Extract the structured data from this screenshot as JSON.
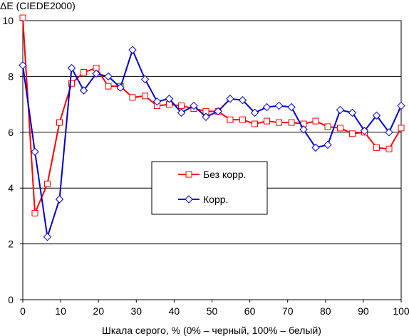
{
  "chart_data": {
    "type": "line",
    "title": "",
    "ylabel": "ΔE (CIEDE2000)",
    "xlabel": "Шкала серого, % (0% – черный, 100% – белый)",
    "xlim": [
      0,
      100
    ],
    "ylim": [
      0,
      10
    ],
    "xticks": [
      0,
      10,
      20,
      30,
      40,
      50,
      60,
      70,
      80,
      90,
      100
    ],
    "yticks": [
      0,
      2,
      4,
      6,
      8,
      10
    ],
    "grid": "horizontal",
    "legend_position": "center",
    "x": [
      0,
      3.2,
      6.5,
      9.7,
      12.9,
      16.1,
      19.4,
      22.6,
      25.8,
      29.0,
      32.3,
      35.5,
      38.7,
      41.9,
      45.2,
      48.4,
      51.6,
      54.8,
      58.1,
      61.3,
      64.5,
      67.7,
      71.0,
      74.2,
      77.4,
      80.6,
      83.9,
      87.1,
      90.3,
      93.5,
      96.8,
      100
    ],
    "series": [
      {
        "name": "Без корр.",
        "color": "#ff0000",
        "marker": "square",
        "values": [
          10.1,
          3.1,
          4.15,
          6.35,
          7.75,
          8.15,
          8.3,
          7.65,
          7.65,
          7.25,
          7.3,
          6.95,
          7.0,
          6.95,
          6.85,
          6.75,
          6.75,
          6.45,
          6.45,
          6.3,
          6.4,
          6.35,
          6.35,
          6.3,
          6.4,
          6.2,
          6.15,
          5.95,
          6.0,
          5.45,
          5.4,
          6.15
        ]
      },
      {
        "name": "Корр.",
        "color": "#0000cc",
        "marker": "diamond",
        "values": [
          8.4,
          5.3,
          2.25,
          3.6,
          8.3,
          7.5,
          8.1,
          8.0,
          7.6,
          8.95,
          7.9,
          7.1,
          7.2,
          6.7,
          6.95,
          6.55,
          6.75,
          7.2,
          7.15,
          6.7,
          6.9,
          6.95,
          6.9,
          6.1,
          5.45,
          5.55,
          6.8,
          6.7,
          6.05,
          6.6,
          6.0,
          6.95
        ]
      }
    ]
  }
}
